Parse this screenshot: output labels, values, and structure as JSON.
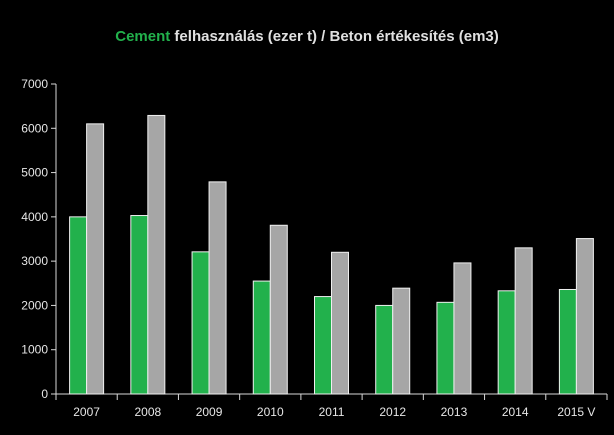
{
  "chart_data": {
    "type": "bar",
    "title_parts": [
      {
        "text": "Cement",
        "color": "#22b14c"
      },
      {
        "text": " felhasználás (ezer t) / ",
        "color": "#e0e0e0"
      },
      {
        "text": "Beton",
        "color": "#e0e0e0"
      },
      {
        "text": " értékesítés (em3)",
        "color": "#e0e0e0"
      }
    ],
    "categories": [
      "2007",
      "2008",
      "2009",
      "2010",
      "2011",
      "2012",
      "2013",
      "2014",
      "2015 V"
    ],
    "series": [
      {
        "values": [
          4000,
          4030,
          3210,
          2550,
          2200,
          2000,
          2070,
          2330,
          2360
        ],
        "color": "#22b14c"
      },
      {
        "values": [
          6100,
          6290,
          4790,
          3810,
          3200,
          2390,
          2960,
          3300,
          3510
        ],
        "color": "#a6a6a6"
      }
    ],
    "ylim": [
      0,
      7000
    ],
    "yticks": [
      0,
      1000,
      2000,
      3000,
      4000,
      5000,
      6000,
      7000
    ],
    "grid": false,
    "legend": "none"
  }
}
